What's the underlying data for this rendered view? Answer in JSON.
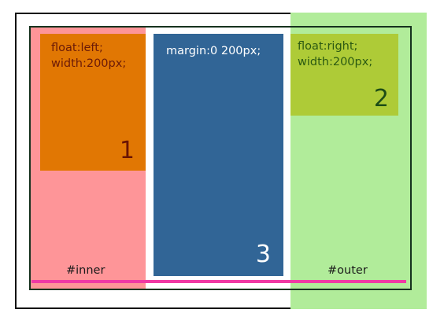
{
  "diagram": {
    "boxes": [
      {
        "id": "left",
        "lines": [
          "float:left;",
          "width:200px;"
        ],
        "number": "1",
        "color": "#e17703"
      },
      {
        "id": "center",
        "lines": [
          "margin:0 200px;"
        ],
        "number": "3",
        "color": "#316596"
      },
      {
        "id": "right",
        "lines": [
          "float:right;",
          "width:200px;"
        ],
        "number": "2",
        "color": "#aecb37"
      }
    ],
    "labels": {
      "inner": "#inner",
      "outer": "#outer"
    },
    "colors": {
      "inner_background": "#fe9598",
      "outer_background": "#b1ec9a",
      "baseline": "#ef3aa4"
    }
  }
}
